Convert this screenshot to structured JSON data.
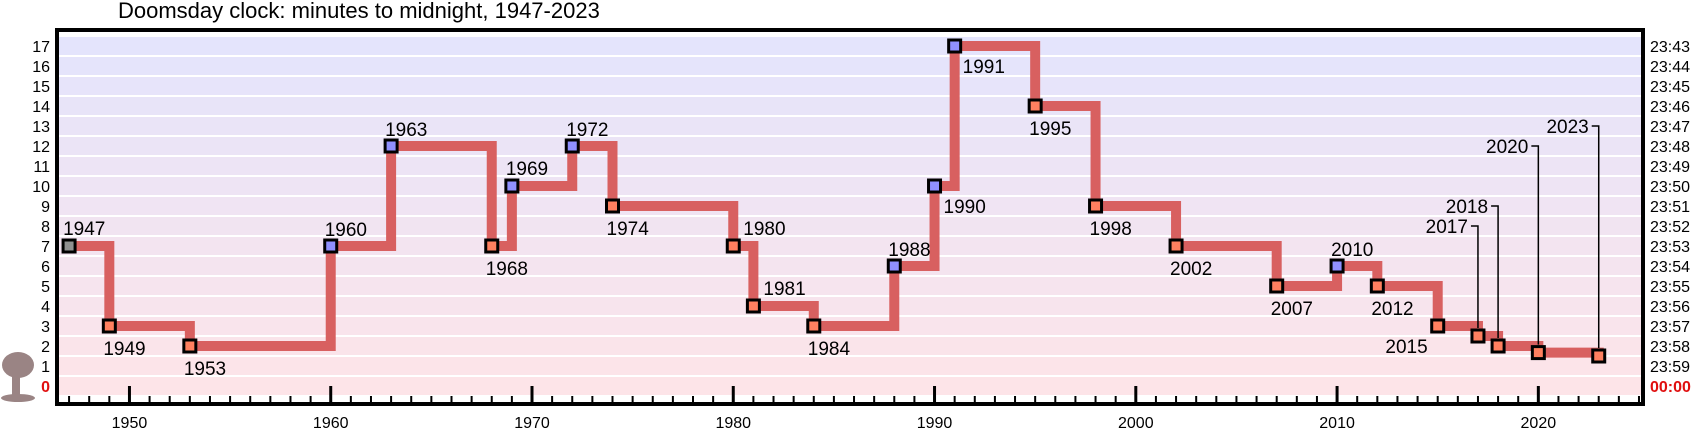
{
  "chart_data": {
    "type": "line",
    "title": "Doomsday clock: minutes to midnight, 1947-2023",
    "xlabel": "",
    "ylabel": "",
    "xlim": [
      1946.4,
      2025.2
    ],
    "ylim": [
      0,
      17
    ],
    "x_ticks": [
      1950,
      1960,
      1970,
      1980,
      1990,
      2000,
      2010,
      2020
    ],
    "y_ticks_left": [
      "0",
      "1",
      "2",
      "3",
      "4",
      "5",
      "6",
      "7",
      "8",
      "9",
      "10",
      "11",
      "12",
      "13",
      "14",
      "15",
      "16",
      "17"
    ],
    "y_ticks_right": [
      "00:00",
      "23:59",
      "23:58",
      "23:57",
      "23:56",
      "23:55",
      "23:54",
      "23:53",
      "23:52",
      "23:51",
      "23:50",
      "23:49",
      "23:48",
      "23:47",
      "23:46",
      "23:45",
      "23:44",
      "23:43"
    ],
    "step": "post",
    "series": [
      {
        "x": [
          1947,
          1949,
          1953,
          1960,
          1963,
          1968,
          1969,
          1972,
          1974,
          1980,
          1981,
          1984,
          1988,
          1990,
          1991,
          1995,
          1998,
          2002,
          2007,
          2010,
          2012,
          2015,
          2017,
          2018,
          2020,
          2023
        ],
        "y": [
          7,
          3,
          2,
          7,
          12,
          7,
          10,
          12,
          9,
          7,
          4,
          3,
          6,
          10,
          17,
          14,
          9,
          7,
          5,
          6,
          5,
          3,
          2.5,
          2,
          1.67,
          1.5
        ],
        "labels": [
          "1947",
          "1949",
          "1953",
          "1960",
          "1963",
          "1968",
          "1969",
          "1972",
          "1974",
          "1980",
          "1981",
          "1984",
          "1988",
          "1990",
          "1991",
          "1995",
          "1998",
          "2002",
          "2007",
          "2010",
          "2012",
          "2015",
          "2017",
          "2018",
          "2020",
          "2023"
        ]
      }
    ],
    "colors": {
      "line": "#d86060",
      "marker_worse": "#ff8060",
      "marker_better": "#9090ff",
      "marker_first": "#909090",
      "band_top": "#e4e4fc",
      "band_bottom": "#fde4e8",
      "zero_label": "#e01010",
      "mushroom": "#9a8484"
    },
    "grid": false,
    "legend": "none",
    "icon": "mushroom-cloud-icon"
  }
}
